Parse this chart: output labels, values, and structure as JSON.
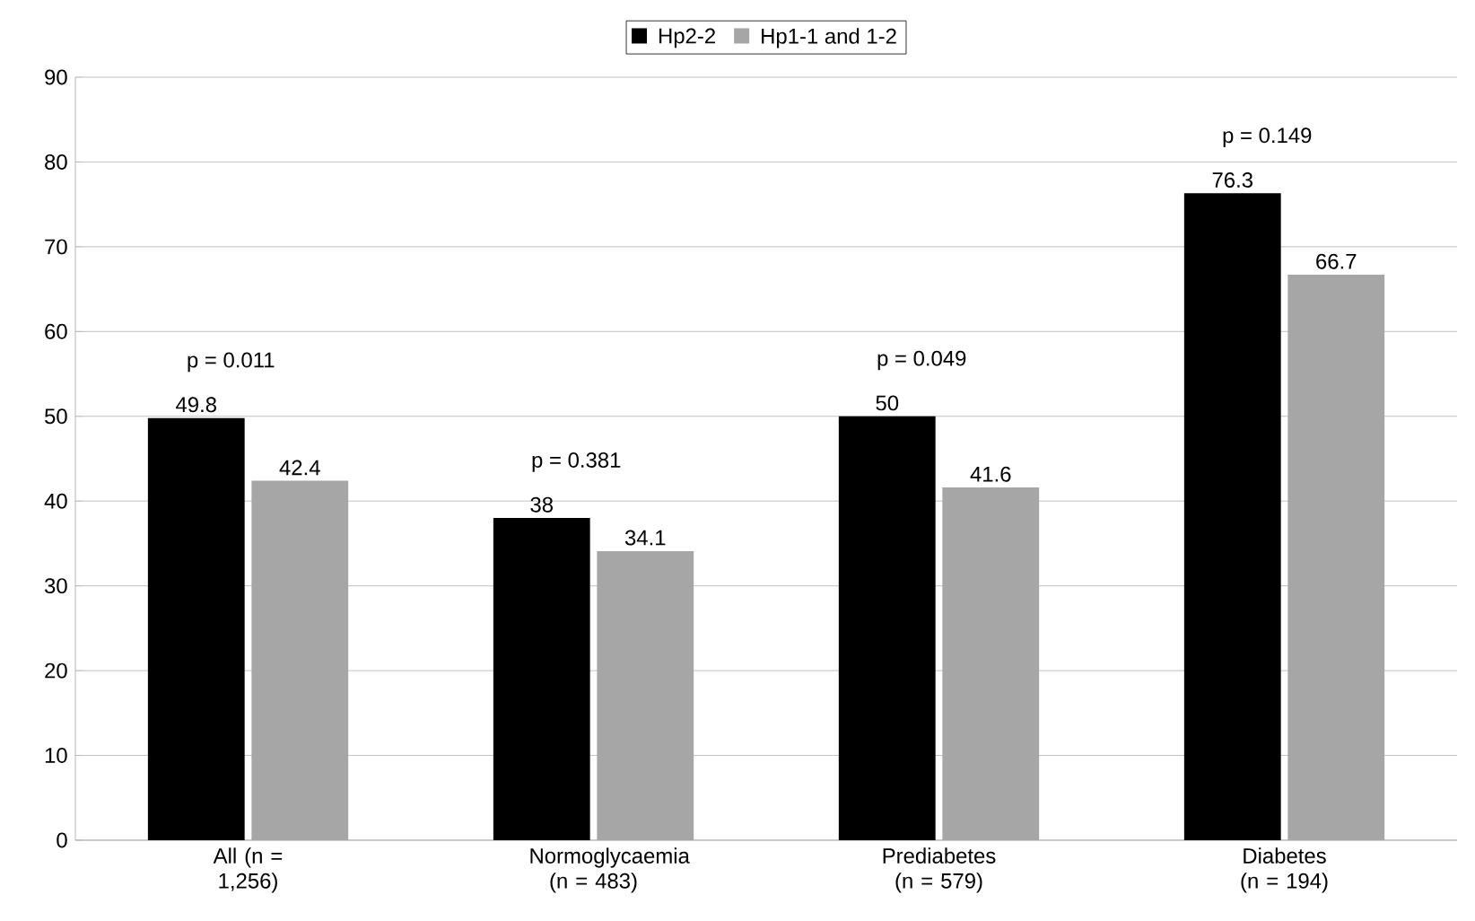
{
  "chart_data": {
    "type": "bar",
    "categories": [
      "All (n = 1,256)",
      "Normoglycaemia (n = 483)",
      "Prediabetes (n = 579)",
      "Diabetes (n = 194)"
    ],
    "series": [
      {
        "name": "Hp2-2",
        "color": "#000000",
        "values": [
          49.8,
          38,
          50,
          76.3
        ]
      },
      {
        "name": "Hp1-1 and 1-2",
        "color": "#a6a6a6",
        "values": [
          42.4,
          34.1,
          41.6,
          66.7
        ]
      }
    ],
    "ylim": [
      0,
      90
    ],
    "yticks": [
      0,
      10,
      20,
      30,
      40,
      50,
      60,
      70,
      80,
      90
    ],
    "grid": "y",
    "legend": "top",
    "data_labels": true,
    "annotations": [
      "p = 0.011",
      "p = 0.381",
      "p = 0.049",
      "p = 0.149"
    ]
  }
}
